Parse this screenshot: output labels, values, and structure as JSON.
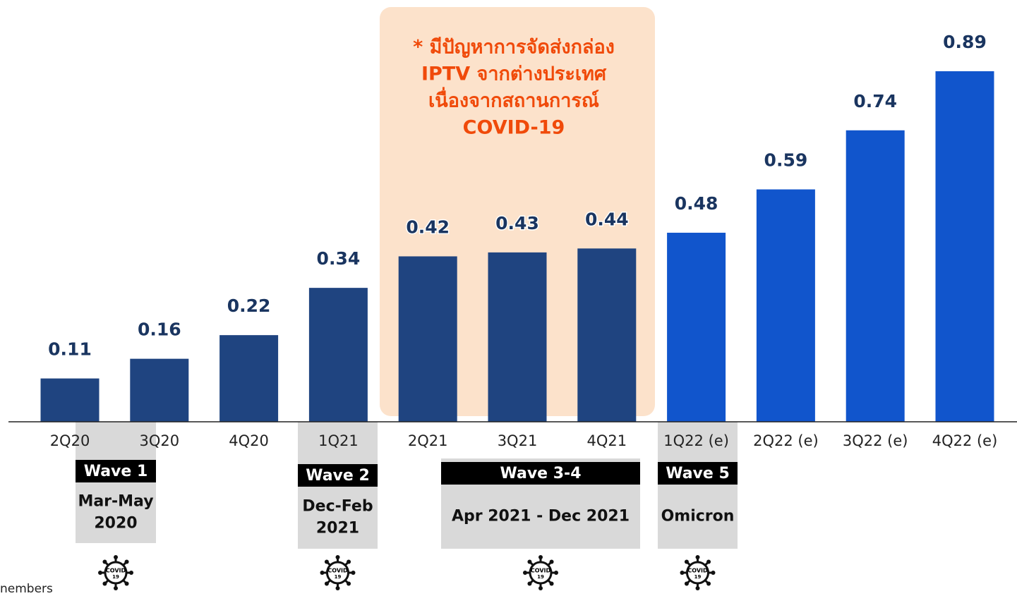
{
  "chart_data": {
    "type": "bar",
    "categories": [
      "2Q20",
      "3Q20",
      "4Q20",
      "1Q21",
      "2Q21",
      "3Q21",
      "4Q21",
      "1Q22 (e)",
      "2Q22 (e)",
      "3Q22 (e)",
      "4Q22 (e)"
    ],
    "values": [
      0.11,
      0.16,
      0.22,
      0.34,
      0.42,
      0.43,
      0.44,
      0.48,
      0.59,
      0.74,
      0.89
    ],
    "colors": [
      "#1f4480",
      "#1f4480",
      "#1f4480",
      "#1f4480",
      "#1f4480",
      "#1f4480",
      "#1f4480",
      "#1155cc",
      "#1155cc",
      "#1155cc",
      "#1155cc"
    ],
    "annotation": [
      "* มีปัญหาการจัดส่งกล่อง",
      "IPTV จากต่างประเทศ",
      "เนื่องจากสถานการณ์",
      "COVID-19"
    ],
    "waves": [
      {
        "label": "Wave 1",
        "period": [
          "Mar-May",
          "2020"
        ]
      },
      {
        "label": "Wave 2",
        "period": [
          "Dec-Feb",
          "2021"
        ]
      },
      {
        "label": "Wave 3-4",
        "period": [
          "Apr 2021 - Dec 2021"
        ]
      },
      {
        "label": "Wave 5",
        "period": [
          "Omicron"
        ]
      }
    ],
    "icon_text": [
      "COVID",
      "19"
    ],
    "footnote": "nembers"
  }
}
